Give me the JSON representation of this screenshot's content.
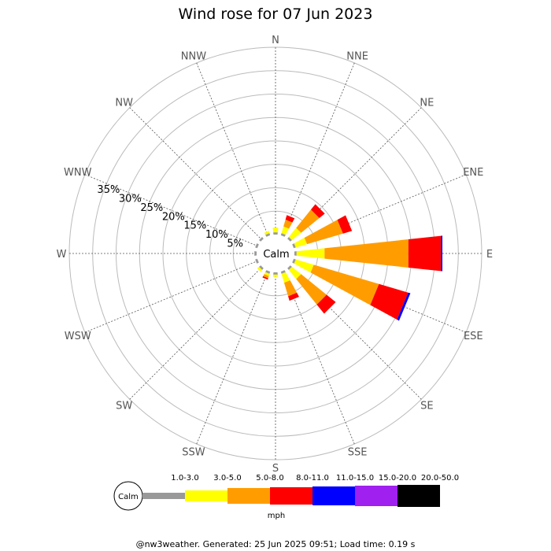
{
  "chart_data": {
    "type": "windrose",
    "title": "Wind rose for 07 Jun 2023",
    "calm_label": "Calm",
    "directions": [
      "N",
      "NNE",
      "NE",
      "ENE",
      "E",
      "ESE",
      "SE",
      "SSE",
      "S",
      "SSW",
      "SW",
      "WSW",
      "W",
      "WNW",
      "NW",
      "NNW"
    ],
    "ring_labels": [
      "5%",
      "10%",
      "15%",
      "20%",
      "25%",
      "30%",
      "35%"
    ],
    "ring_values": [
      5,
      10,
      15,
      20,
      25,
      30,
      35
    ],
    "rmax": 40,
    "speed_bins": [
      {
        "label": "1.0-3.0",
        "color": "#999999"
      },
      {
        "label": "3.0-5.0",
        "color": "#ffff00"
      },
      {
        "label": "5.0-8.0",
        "color": "#ff9d00"
      },
      {
        "label": "8.0-11.0",
        "color": "#ff0000"
      },
      {
        "label": "11.0-15.0",
        "color": "#0000ff"
      },
      {
        "label": "15.0-20.0",
        "color": "#a020f0"
      },
      {
        "label": "20.0-50.0",
        "color": "#000000"
      }
    ],
    "frequencies": {
      "N": [
        0.5,
        1.0,
        0.0,
        0.0,
        0.0,
        0.0,
        0.0
      ],
      "NNE": [
        0.5,
        1.5,
        1.5,
        1.0,
        0.0,
        0.0,
        0.0
      ],
      "NE": [
        0.5,
        2.5,
        5.0,
        1.5,
        0.0,
        0.0,
        0.0
      ],
      "ENE": [
        0.5,
        2.5,
        8.0,
        2.0,
        0.0,
        0.0,
        0.0
      ],
      "E": [
        0.5,
        6.0,
        18.0,
        7.0,
        0.3,
        0.0,
        0.0
      ],
      "ESE": [
        0.5,
        4.0,
        14.5,
        6.5,
        0.5,
        0.0,
        0.0
      ],
      "SE": [
        0.5,
        2.5,
        7.0,
        2.5,
        0.0,
        0.0,
        0.0
      ],
      "SSE": [
        0.5,
        2.0,
        3.0,
        1.0,
        0.0,
        0.0,
        0.0
      ],
      "S": [
        0.5,
        0.5,
        0.0,
        0.0,
        0.0,
        0.0,
        0.0
      ],
      "SSW": [
        0.5,
        0.5,
        0.5,
        0.3,
        0.0,
        0.0,
        0.0
      ],
      "SW": [
        0.5,
        0.5,
        0.0,
        0.0,
        0.0,
        0.0,
        0.0
      ],
      "WSW": [
        0.5,
        0.0,
        0.0,
        0.0,
        0.0,
        0.0,
        0.0
      ],
      "W": [
        0.5,
        0.0,
        0.0,
        0.0,
        0.0,
        0.0,
        0.0
      ],
      "WNW": [
        0.5,
        0.0,
        0.0,
        0.0,
        0.0,
        0.0,
        0.0
      ],
      "NW": [
        0.5,
        0.0,
        0.0,
        0.0,
        0.0,
        0.0,
        0.0
      ],
      "NNW": [
        0.5,
        0.5,
        0.0,
        0.0,
        0.0,
        0.0,
        0.0
      ]
    }
  },
  "legend": {
    "unit_label": "mph"
  },
  "footer": {
    "text": "@nw3weather. Generated: 25 Jun 2025 09:51; Load time: 0.19 s"
  }
}
